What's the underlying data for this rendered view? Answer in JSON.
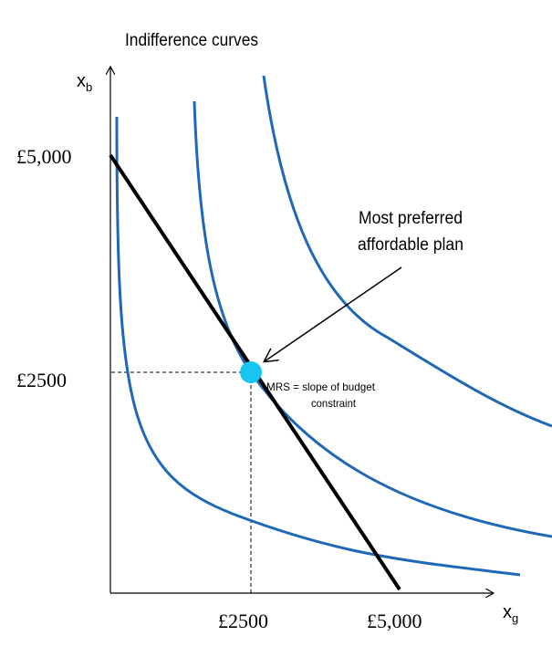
{
  "title": "Indifference curves",
  "y_axis": {
    "label_main": "x",
    "label_sub": "b",
    "ticks": [
      "£5,000",
      "£2500"
    ]
  },
  "x_axis": {
    "label_main": "x",
    "label_sub": "g",
    "ticks": [
      "£2500",
      "£5,000"
    ]
  },
  "annotations": {
    "preferred_line1": "Most preferred",
    "preferred_line2": "affordable plan",
    "mrs_line1": "MRS  = slope  of budget",
    "mrs_line2": "constraint"
  },
  "colors": {
    "curve": "#1f68b8",
    "budget": "#000000",
    "optimum": "#18c4f0",
    "axis": "#000000"
  }
}
